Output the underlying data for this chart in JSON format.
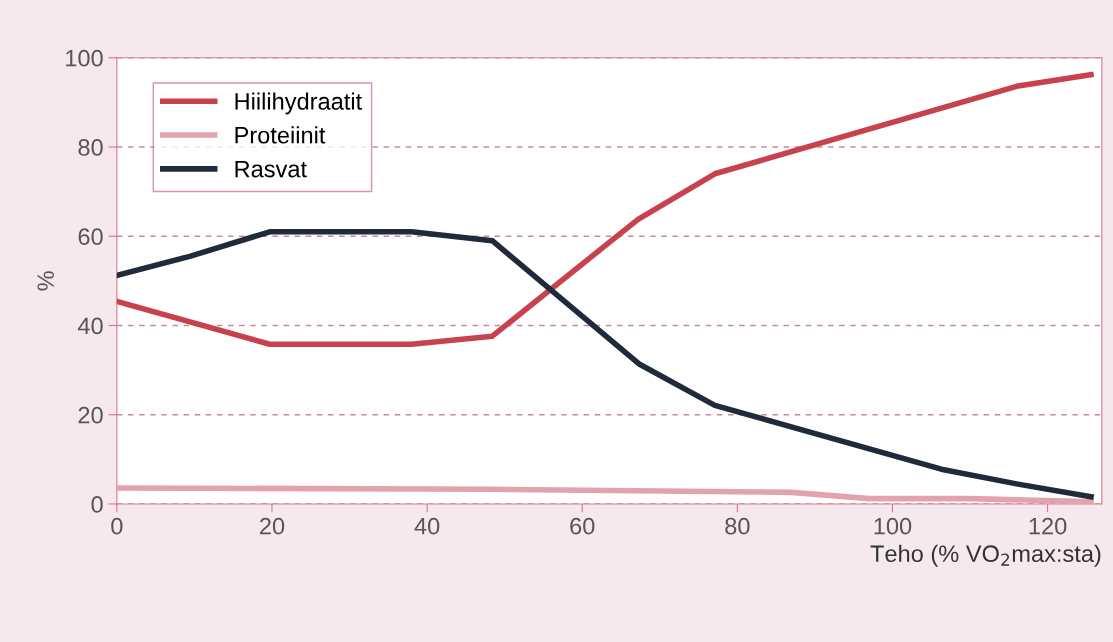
{
  "chart_data": {
    "type": "line",
    "xlabel": "Teho (% VO$_{2}$max:sta)",
    "ylabel": "%",
    "xlim": [
      0,
      127
    ],
    "xticks": [
      0,
      20,
      40,
      60,
      80,
      100,
      120
    ],
    "ylim": [
      0,
      100
    ],
    "yticks": [
      0,
      20,
      40,
      60,
      80,
      100
    ],
    "grid": "y",
    "legend": "top left",
    "line_style": "solid",
    "marker": "none",
    "series": [
      {
        "name": "Hiilihydraatit",
        "color": "#c8414f",
        "x": [
          0,
          19.7,
          38,
          48.4,
          67.2,
          77.1,
          116,
          125.6
        ],
        "values": [
          45.4,
          35.8,
          35.8,
          37.6,
          63.8,
          74,
          93.6,
          96.2
        ]
      },
      {
        "name": "Proteiinit",
        "color": "#e3a3ae",
        "x": [
          0,
          48,
          87,
          97,
          110,
          125.6
        ],
        "values": [
          3.6,
          3.3,
          2.6,
          1.2,
          1.2,
          0.5
        ]
      },
      {
        "name": "Rasvat",
        "color": "#1f2a3a",
        "x": [
          0,
          9.4,
          19.7,
          38,
          48.4,
          67.4,
          77.1,
          106.3,
          116,
          125.6
        ],
        "values": [
          51.2,
          55.5,
          61,
          61,
          59,
          31.3,
          22.1,
          7.8,
          4.5,
          1.6
        ]
      }
    ]
  }
}
